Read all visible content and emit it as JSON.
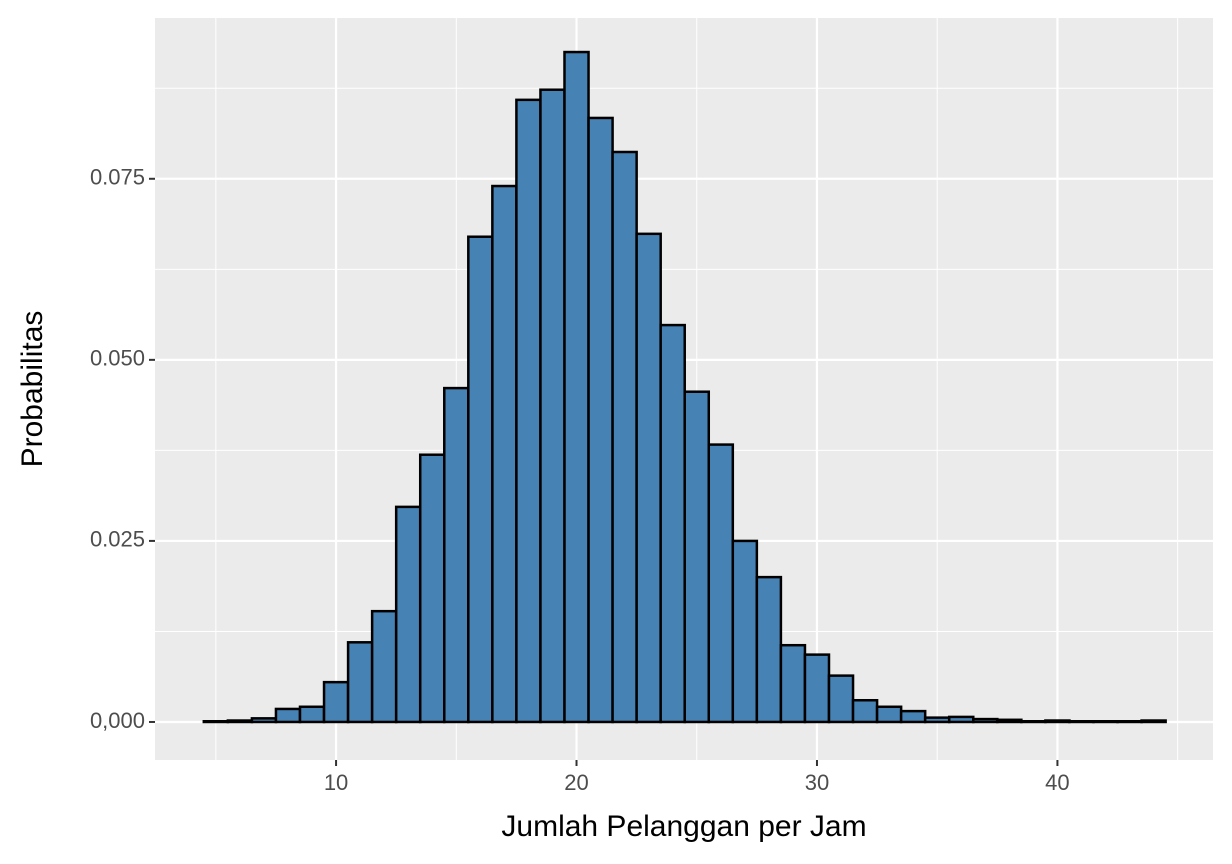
{
  "chart_data": {
    "type": "histogram",
    "x_label": "Jumlah Pelanggan per Jam",
    "y_label": "Probabilitas",
    "bins": [
      4.5,
      5.5,
      6.5,
      7.5,
      8.5,
      9.5,
      10.5,
      11.5,
      12.5,
      13.5,
      14.5,
      15.5,
      16.5,
      17.5,
      18.5,
      19.5,
      20.5,
      21.5,
      22.5,
      23.5,
      24.5,
      25.5,
      26.5,
      27.5,
      28.5,
      29.5,
      30.5,
      31.5,
      32.5,
      33.5,
      34.5,
      35.5,
      36.5,
      37.5,
      38.5,
      39.5,
      40.5,
      41.5,
      42.5,
      43.5,
      44.5
    ],
    "counts": [
      0.0001,
      0.0002,
      0.0005,
      0.0018,
      0.0021,
      0.0055,
      0.011,
      0.0153,
      0.0297,
      0.0369,
      0.0461,
      0.067,
      0.074,
      0.0859,
      0.0873,
      0.0925,
      0.0834,
      0.0787,
      0.0674,
      0.0548,
      0.0456,
      0.0383,
      0.025,
      0.02,
      0.0106,
      0.0093,
      0.0064,
      0.003,
      0.0021,
      0.0015,
      0.0006,
      0.0007,
      0.0004,
      0.0003,
      0.0001,
      0.0002,
      0.0001,
      0.0001,
      0.0001,
      0.0002
    ],
    "color": "#4682b4",
    "edge_color": "#000000",
    "xlim": [
      2.47,
      46.47
    ],
    "ylim": [
      -0.00525,
      0.0972
    ],
    "xticks": [
      10,
      20,
      30,
      40
    ],
    "yticks": [
      {
        "value": 0,
        "label": "0,000"
      },
      0.025,
      {
        "value": 0.05,
        "label": "0.050"
      },
      0.075
    ],
    "grid": true
  }
}
